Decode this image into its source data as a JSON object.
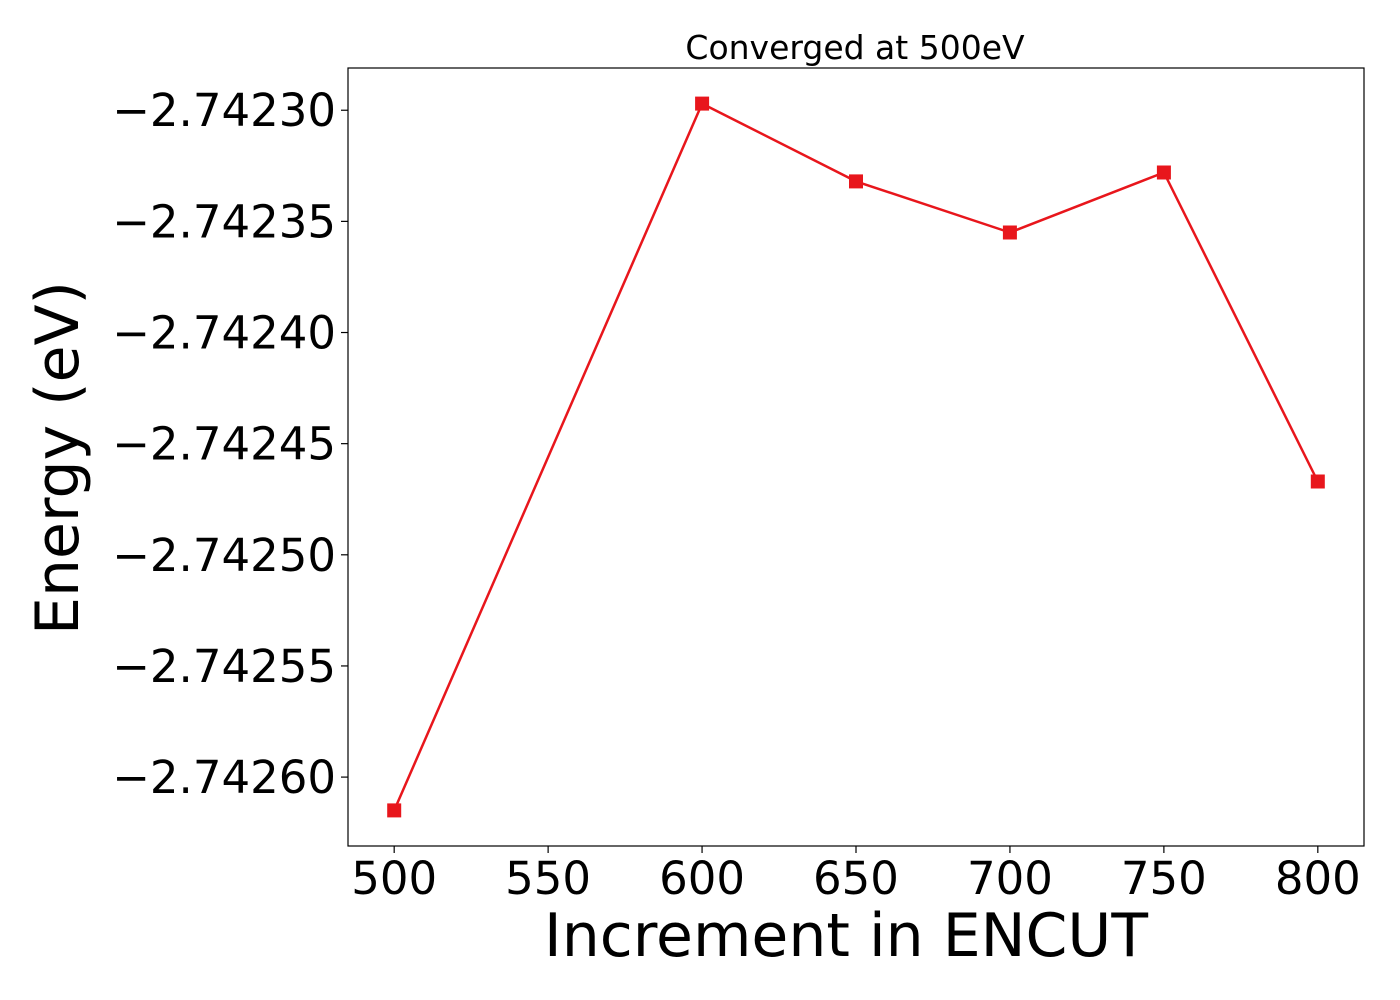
{
  "chart_data": {
    "type": "line",
    "title": "Converged at 500eV",
    "xlabel": "Increment in ENCUT",
    "ylabel": "Energy (eV)",
    "xlim": [
      485,
      815
    ],
    "ylim": [
      -2.742631,
      -2.742281
    ],
    "xticks": [
      500,
      550,
      600,
      650,
      700,
      750,
      800
    ],
    "xtick_labels": [
      "500",
      "550",
      "600",
      "650",
      "700",
      "750",
      "800"
    ],
    "yticks": [
      -2.7423,
      -2.74235,
      -2.7424,
      -2.74245,
      -2.7425,
      -2.74255,
      -2.7426
    ],
    "ytick_labels": [
      "−2.74230",
      "−2.74235",
      "−2.74240",
      "−2.74245",
      "−2.74250",
      "−2.74255",
      "−2.74260"
    ],
    "grid": false,
    "series": [
      {
        "color": "#e8161c",
        "marker": "square",
        "x": [
          500,
          600,
          650,
          700,
          750,
          800
        ],
        "y": [
          -2.742615,
          -2.742297,
          -2.742332,
          -2.742355,
          -2.742328,
          -2.742467
        ]
      }
    ]
  }
}
